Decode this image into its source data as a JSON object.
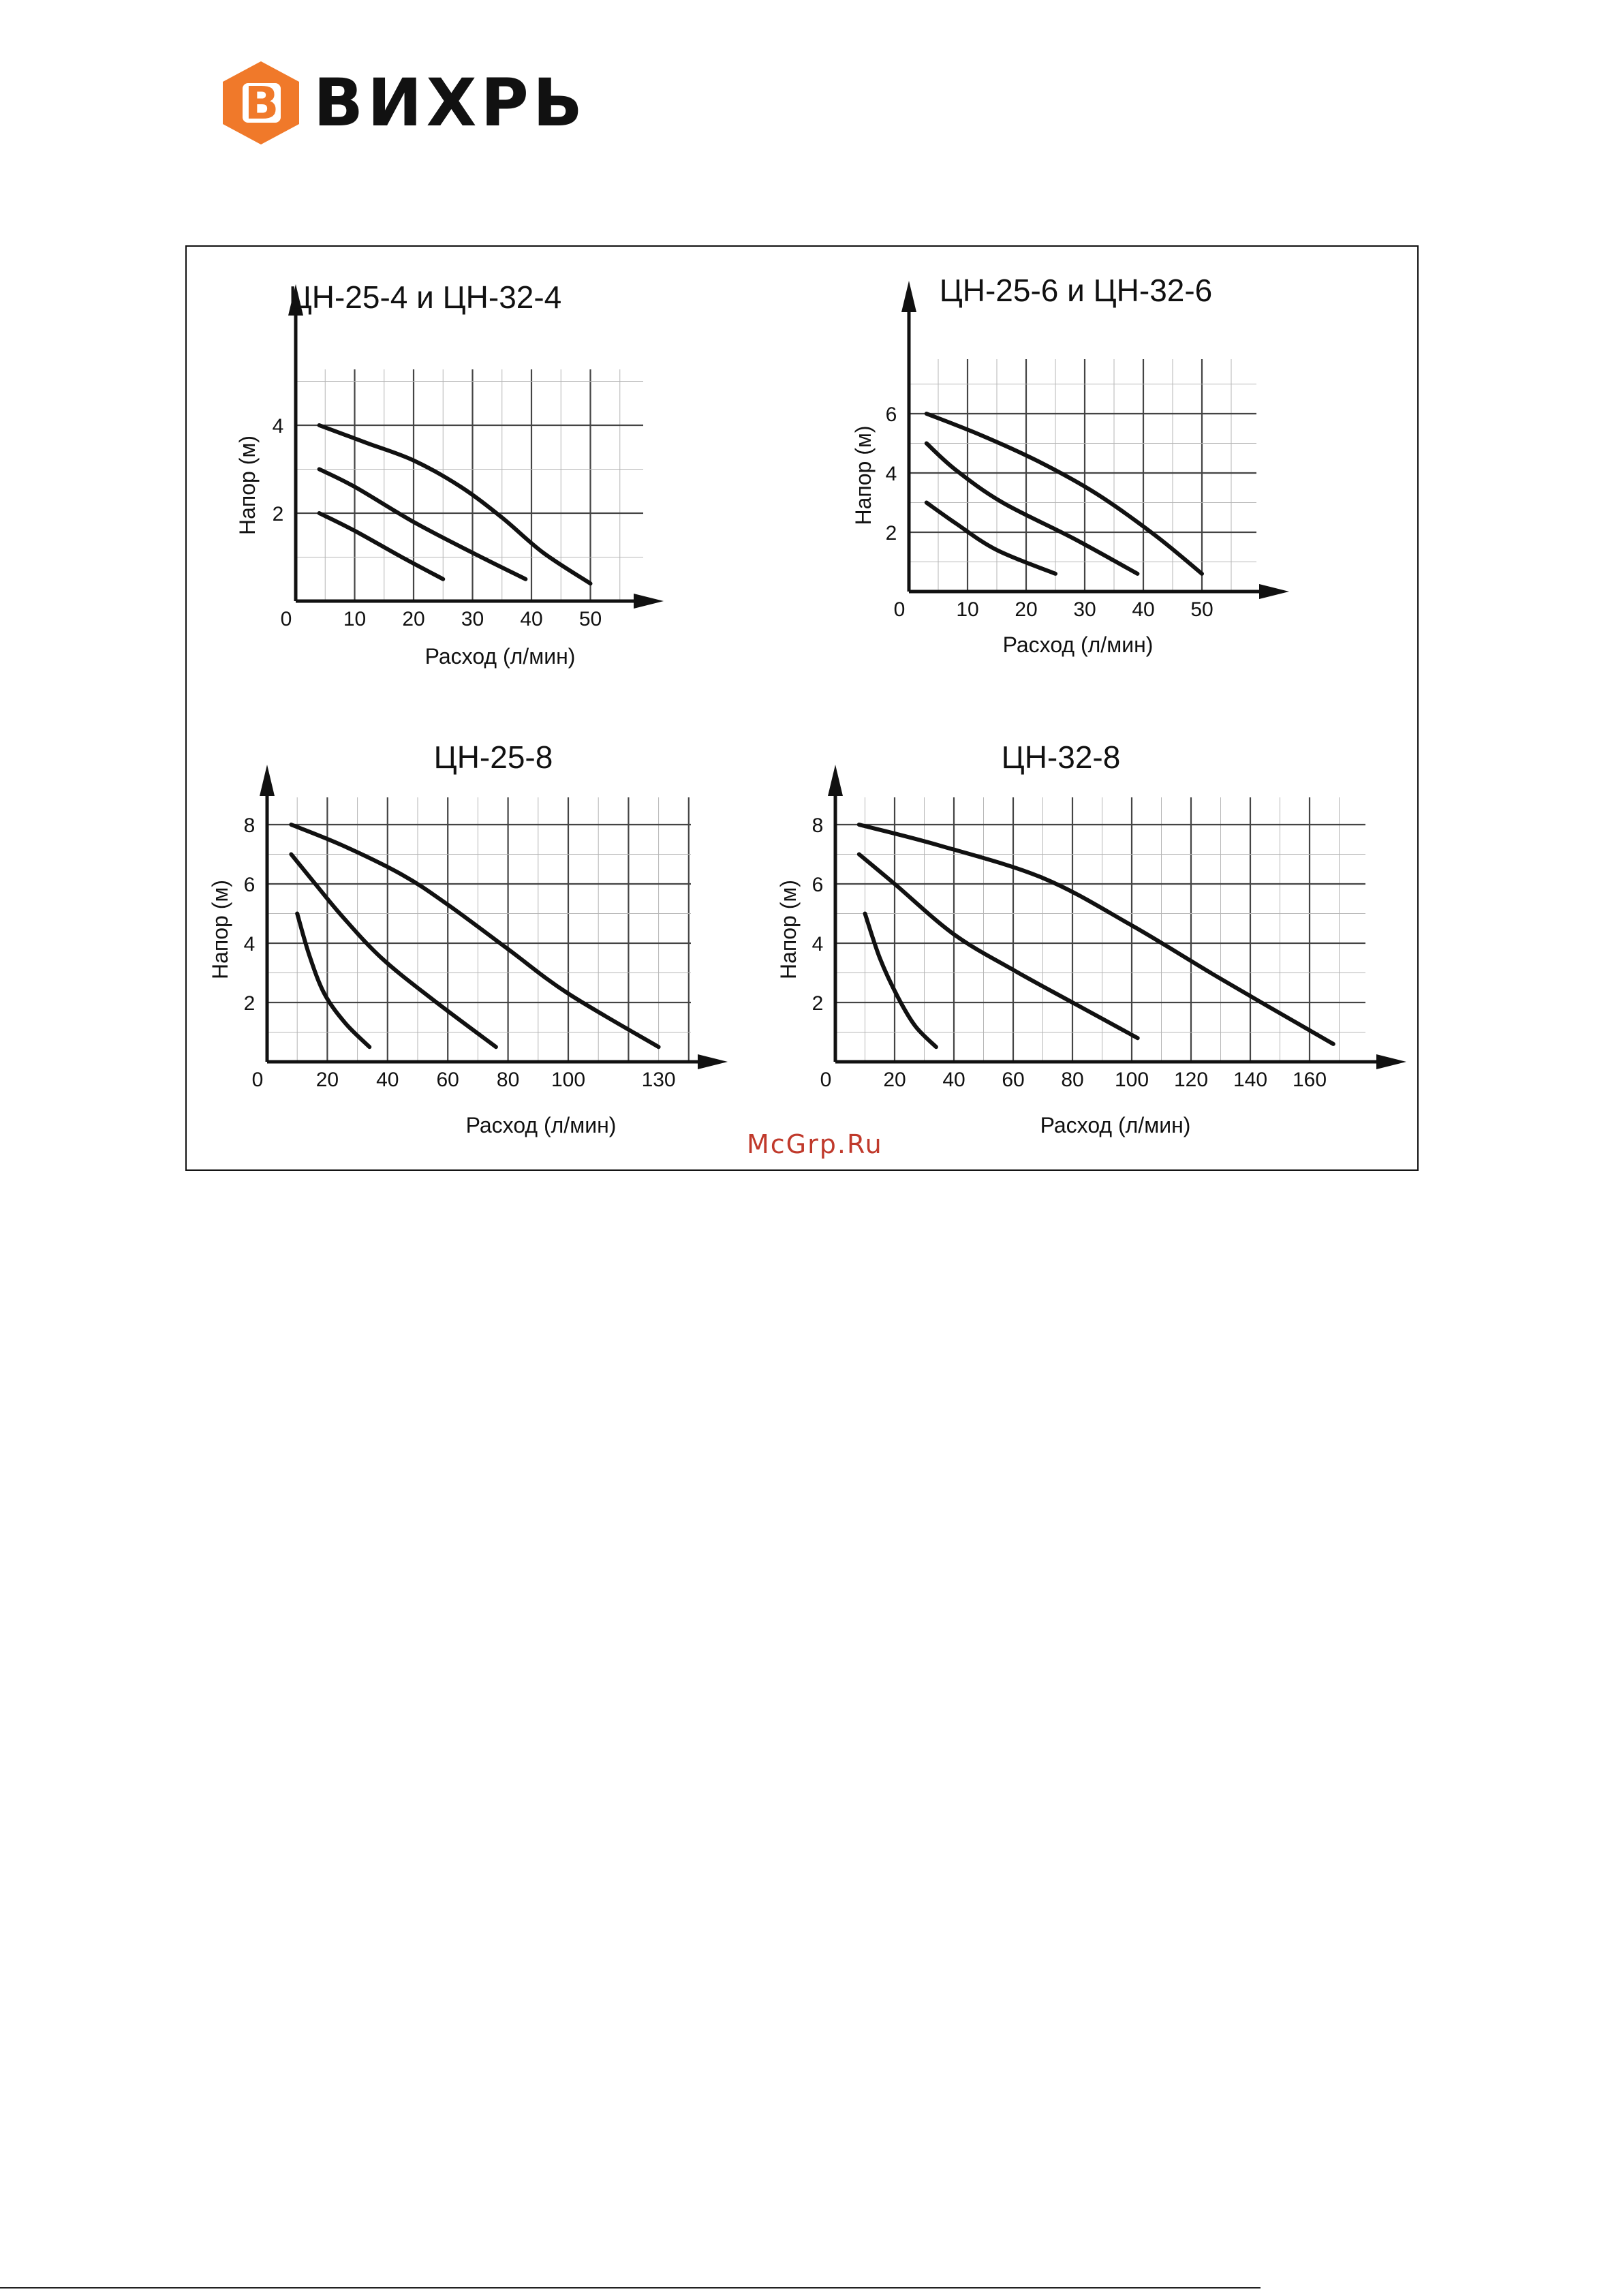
{
  "brand": {
    "name": "ВИХРЬ",
    "logo_letter": "B",
    "logo_color": "#f0792a"
  },
  "watermark": "McGrp.Ru",
  "chart_data": [
    {
      "type": "line",
      "title": "ЦН-25-4 и ЦН-32-4",
      "xlabel": "Расход (л/мин)",
      "ylabel": "Напор (м)",
      "xlim": [
        0,
        55
      ],
      "ylim": [
        0,
        5.5
      ],
      "xticks": [
        0,
        10,
        20,
        30,
        40,
        50
      ],
      "yticks": [
        2,
        4
      ],
      "grid": true,
      "series": [
        {
          "values": [
            [
              4,
              4.0
            ],
            [
              12,
              3.6
            ],
            [
              20,
              3.2
            ],
            [
              28,
              2.6
            ],
            [
              35,
              1.9
            ],
            [
              42,
              1.1
            ],
            [
              50,
              0.4
            ]
          ]
        },
        {
          "values": [
            [
              4,
              3.0
            ],
            [
              10,
              2.6
            ],
            [
              20,
              1.8
            ],
            [
              30,
              1.1
            ],
            [
              39,
              0.5
            ]
          ]
        },
        {
          "values": [
            [
              4,
              2.0
            ],
            [
              10,
              1.6
            ],
            [
              18,
              1.0
            ],
            [
              25,
              0.5
            ]
          ]
        }
      ]
    },
    {
      "type": "line",
      "title": "ЦН-25-6 и ЦН-32-6",
      "xlabel": "Расход (л/мин)",
      "ylabel": "Напор (м)",
      "xlim": [
        0,
        58
      ],
      "ylim": [
        0,
        8
      ],
      "xticks": [
        0,
        10,
        20,
        30,
        40,
        50
      ],
      "yticks": [
        2,
        4,
        6
      ],
      "grid": true,
      "series": [
        {
          "values": [
            [
              3,
              6.0
            ],
            [
              12,
              5.3
            ],
            [
              22,
              4.4
            ],
            [
              32,
              3.3
            ],
            [
              42,
              1.9
            ],
            [
              50,
              0.6
            ]
          ]
        },
        {
          "values": [
            [
              3,
              5.0
            ],
            [
              8,
              4.1
            ],
            [
              16,
              3.0
            ],
            [
              28,
              1.8
            ],
            [
              39,
              0.6
            ]
          ]
        },
        {
          "values": [
            [
              3,
              3.0
            ],
            [
              8,
              2.3
            ],
            [
              15,
              1.4
            ],
            [
              25,
              0.6
            ]
          ]
        }
      ]
    },
    {
      "type": "line",
      "title": "ЦН-25-8",
      "xlabel": "Расход (л/мин)",
      "ylabel": "Напор (м)",
      "xlim": [
        0,
        150
      ],
      "ylim": [
        0,
        9.5
      ],
      "xticks": [
        0,
        20,
        40,
        60,
        80,
        100,
        130
      ],
      "yticks": [
        2,
        4,
        6,
        8
      ],
      "grid": true,
      "series": [
        {
          "values": [
            [
              8,
              8.0
            ],
            [
              25,
              7.3
            ],
            [
              45,
              6.3
            ],
            [
              60,
              5.3
            ],
            [
              80,
              3.8
            ],
            [
              100,
              2.3
            ],
            [
              130,
              0.5
            ]
          ]
        },
        {
          "values": [
            [
              8,
              7.0
            ],
            [
              16,
              6.0
            ],
            [
              25,
              4.9
            ],
            [
              38,
              3.5
            ],
            [
              55,
              2.1
            ],
            [
              76,
              0.5
            ]
          ]
        },
        {
          "values": [
            [
              10,
              5.0
            ],
            [
              14,
              3.6
            ],
            [
              19,
              2.3
            ],
            [
              26,
              1.3
            ],
            [
              34,
              0.5
            ]
          ]
        }
      ]
    },
    {
      "type": "line",
      "title": "ЦН-32-8",
      "xlabel": "Расход (л/мин)",
      "ylabel": "Напор (м)",
      "xlim": [
        0,
        190
      ],
      "ylim": [
        0,
        9.5
      ],
      "xticks": [
        0,
        20,
        40,
        60,
        80,
        100,
        120,
        140,
        160
      ],
      "yticks": [
        2,
        4,
        6,
        8
      ],
      "grid": true,
      "series": [
        {
          "values": [
            [
              8,
              8.0
            ],
            [
              35,
              7.3
            ],
            [
              70,
              6.2
            ],
            [
              100,
              4.6
            ],
            [
              130,
              2.8
            ],
            [
              168,
              0.6
            ]
          ]
        },
        {
          "values": [
            [
              8,
              7.0
            ],
            [
              20,
              6.0
            ],
            [
              40,
              4.3
            ],
            [
              60,
              3.1
            ],
            [
              80,
              2.0
            ],
            [
              102,
              0.8
            ]
          ]
        },
        {
          "values": [
            [
              10,
              5.0
            ],
            [
              15,
              3.5
            ],
            [
              21,
              2.2
            ],
            [
              27,
              1.2
            ],
            [
              34,
              0.5
            ]
          ]
        }
      ]
    }
  ]
}
